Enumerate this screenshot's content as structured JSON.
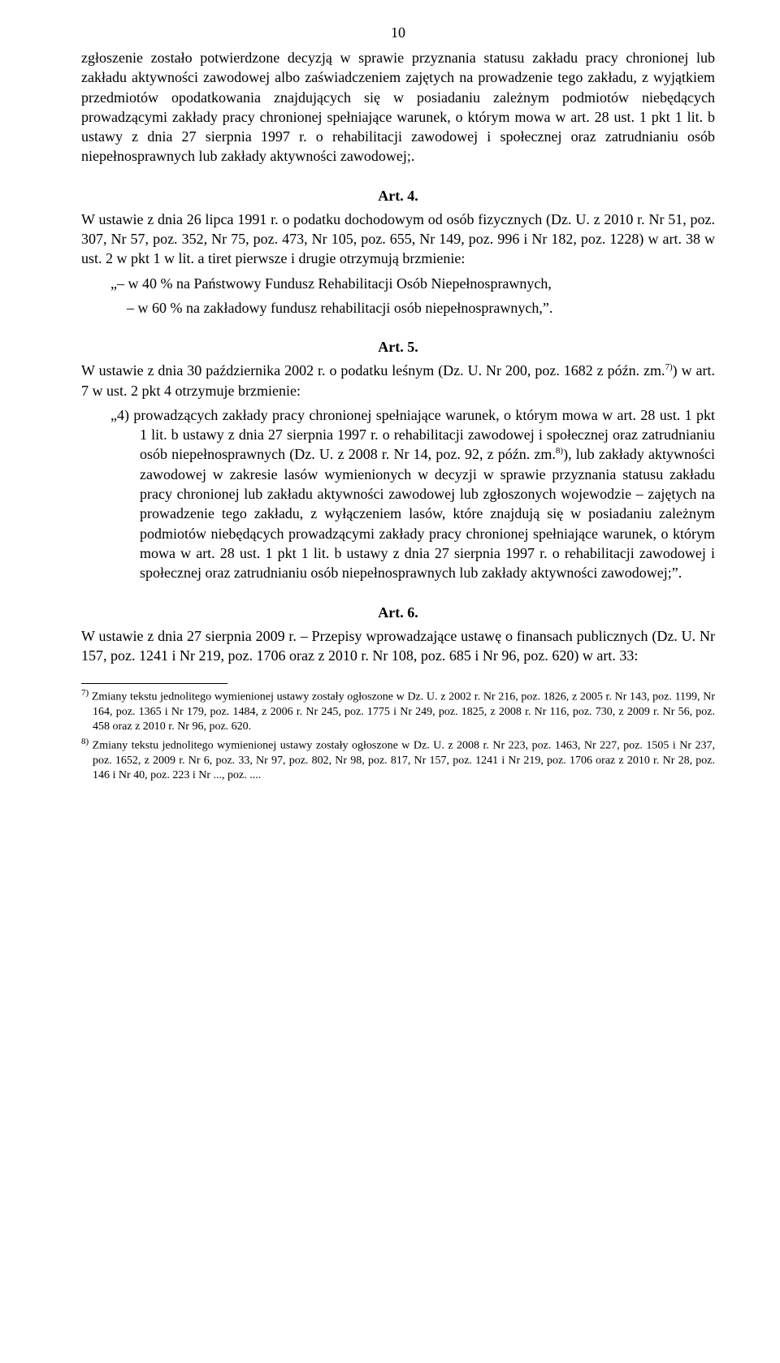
{
  "page_number": "10",
  "top_para": "zgłoszenie zostało potwierdzone decyzją w sprawie przyznania statusu zakładu pracy chronionej lub zakładu aktywności zawodowej albo zaświadczeniem zajętych na prowadzenie tego zakładu, z wyjątkiem przedmiotów opodatkowania znajdujących się w posiadaniu zależnym podmiotów niebędących prowadzącymi zakłady pracy chronionej spełniające warunek, o którym mowa w art. 28 ust. 1 pkt 1 lit. b ustawy z dnia 27 sierpnia 1997 r. o rehabilitacji zawodowej i społecznej oraz zatrudnianiu osób niepełnosprawnych lub zakłady aktywności zawodowej;.",
  "art4": {
    "heading": "Art. 4.",
    "intro": "W ustawie z dnia 26 lipca 1991 r. o podatku dochodowym od osób fizycznych (Dz. U. z 2010 r. Nr 51, poz. 307, Nr 57, poz. 352, Nr 75, poz. 473, Nr 105, poz. 655, Nr 149, poz. 996 i Nr 182, poz. 1228) w art. 38 w ust. 2 w pkt 1 w lit. a tiret pierwsze i drugie otrzymują brzmienie:",
    "line1": "„– w 40 % na Państwowy Fundusz Rehabilitacji Osób Niepełnosprawnych,",
    "line2": "– w 60 % na zakładowy fundusz rehabilitacji osób niepełnosprawnych,”."
  },
  "art5": {
    "heading": "Art. 5.",
    "intro_part1": "W ustawie z dnia 30 października 2002 r. o podatku leśnym (Dz. U. Nr 200, poz. 1682 z późn. zm.",
    "intro_sup": "7)",
    "intro_part2": ") w art. 7 w ust. 2 pkt 4 otrzymuje brzmienie:",
    "point_prefix": "„4) ",
    "point_part1": "prowadzących zakłady pracy chronionej spełniające warunek, o którym mowa w art. 28 ust. 1 pkt 1 lit. b ustawy z dnia 27 sierpnia 1997 r. o rehabilitacji zawodowej i społecznej oraz zatrudnianiu osób niepełnosprawnych (Dz. U. z 2008 r. Nr 14, poz. 92, z późn. zm.",
    "point_sup": "8)",
    "point_part2": "), lub zakłady aktywności zawodowej w zakresie lasów wymienionych w decyzji w sprawie przyznania statusu zakładu pracy chronionej lub zakładu aktywności zawodowej lub zgłoszonych wojewodzie – zajętych na prowadzenie tego zakładu, z wyłączeniem lasów, które znajdują się w posiadaniu zależnym podmiotów niebędących prowadzącymi zakłady pracy chronionej spełniające warunek, o którym mowa w art. 28 ust. 1 pkt 1 lit. b ustawy z dnia 27 sierpnia 1997 r. o rehabilitacji zawodowej i społecznej oraz zatrudnianiu osób niepełnosprawnych lub zakłady aktywności zawodowej;”."
  },
  "art6": {
    "heading": "Art. 6.",
    "para": "W ustawie z dnia 27 sierpnia 2009 r. – Przepisy wprowadzające ustawę o finansach publicznych (Dz. U. Nr 157, poz. 1241 i Nr 219, poz. 1706 oraz z 2010 r. Nr 108, poz. 685 i Nr 96, poz. 620) w art. 33:"
  },
  "footnotes": {
    "fn7_sup": "7)",
    "fn7_text": " Zmiany tekstu jednolitego wymienionej ustawy zostały ogłoszone w Dz. U. z 2002 r. Nr 216, poz. 1826, z 2005 r. Nr 143, poz. 1199, Nr 164, poz. 1365 i Nr 179, poz. 1484, z 2006 r. Nr 245, poz. 1775 i Nr 249, poz. 1825, z 2008 r. Nr 116, poz. 730, z 2009 r. Nr 56, poz. 458 oraz z 2010 r. Nr 96, poz. 620.",
    "fn8_sup": "8)",
    "fn8_text": " Zmiany tekstu jednolitego wymienionej ustawy zostały ogłoszone w Dz. U. z 2008 r. Nr 223, poz. 1463, Nr 227, poz. 1505 i Nr 237, poz. 1652, z 2009 r. Nr 6, poz. 33, Nr 97, poz. 802, Nr 98, poz. 817, Nr 157, poz. 1241 i Nr 219, poz. 1706 oraz z 2010 r. Nr 28, poz. 146 i Nr 40, poz. 223 i Nr ..., poz. ...."
  }
}
